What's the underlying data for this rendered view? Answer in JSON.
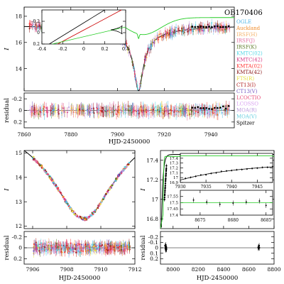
{
  "event_label": "OB170406",
  "chart_data": [
    {
      "id": "top",
      "type": "scatter",
      "ylabel": "I",
      "xlim": [
        7860,
        7950
      ],
      "ylim": [
        18.7,
        12.3
      ],
      "yticks": [
        14,
        16,
        18
      ],
      "xticks": [
        7860,
        7880,
        7900,
        7920,
        7940
      ],
      "peak": {
        "t0": 7909,
        "tE": 5,
        "base": 17.4,
        "amp": 5.1
      },
      "spitzer_curve": {
        "base": 17.9,
        "amp": 1.3,
        "t0": 7911,
        "tE": 10
      },
      "legend": [
        {
          "name": "OGLE",
          "color": "#4fb6e6"
        },
        {
          "name": "Auckland",
          "color": "#f08c2a"
        },
        {
          "name": "IRSF(H)",
          "color": "#f4b26a"
        },
        {
          "name": "IRSF(J)",
          "color": "#e36fa0"
        },
        {
          "name": "IRSF(K)",
          "color": "#5f7d2a"
        },
        {
          "name": "KMTC(02)",
          "color": "#55d6e6"
        },
        {
          "name": "KMTC(42)",
          "color": "#d63a86"
        },
        {
          "name": "KMTA(02)",
          "color": "#ff3b3b"
        },
        {
          "name": "KMTA(42)",
          "color": "#8b1a1a"
        },
        {
          "name": "FTS(R)",
          "color": "#e8e040"
        },
        {
          "name": "CT13(I)",
          "color": "#b02020"
        },
        {
          "name": "CT13(V)",
          "color": "#7a5cc4"
        },
        {
          "name": "LCOCTIO",
          "color": "#e8507a"
        },
        {
          "name": "LCOSSO",
          "color": "#d8a0f0"
        },
        {
          "name": "MOA(R)",
          "color": "#bb99dd"
        },
        {
          "name": "MOA(V)",
          "color": "#6ad0e0"
        },
        {
          "name": "Spitzer",
          "color": "#000000"
        }
      ]
    },
    {
      "id": "top-inset",
      "type": "line",
      "xlim": [
        -0.4,
        0.4
      ],
      "ylim": [
        -0.4,
        0.2
      ],
      "xticks": [
        -0.4,
        -0.2,
        0,
        0.2,
        0.4
      ],
      "yticks": [
        -0.2,
        0,
        0.2
      ]
    },
    {
      "id": "top-residual",
      "type": "scatter",
      "ylabel": "residual",
      "xlabel": "HJD-2450000",
      "xlim": [
        7860,
        7950
      ],
      "ylim": [
        -0.3,
        0.3
      ],
      "yticks": [
        -0.2,
        0,
        0.2
      ]
    },
    {
      "id": "bottom-left",
      "type": "scatter",
      "ylabel": "I",
      "xlim": [
        7905.5,
        7912
      ],
      "ylim": [
        15.1,
        11.9
      ],
      "yticks": [
        12,
        13,
        14,
        15
      ],
      "xticks": [
        7906,
        7908,
        7910,
        7912
      ]
    },
    {
      "id": "bottom-left-residual",
      "type": "scatter",
      "ylabel": "residual",
      "xlabel": "HJD-2450000",
      "xlim": [
        7905.5,
        7912
      ],
      "ylim": [
        -0.3,
        0.3
      ],
      "yticks": [
        -0.2,
        0,
        0.2
      ]
    },
    {
      "id": "bottom-right",
      "type": "scatter",
      "ylabel": "I",
      "xlim": [
        7900,
        8800
      ],
      "ylim": [
        17.5,
        16.7
      ],
      "yticks": [
        16.8,
        17,
        17.2,
        17.4
      ],
      "xticks": [
        8000,
        8200,
        8400,
        8600,
        8800
      ]
    },
    {
      "id": "bottom-right-inset-1",
      "type": "scatter",
      "xlim": [
        7930,
        7948
      ],
      "ylim": [
        17.5,
        16.9
      ],
      "xticks": [
        7930,
        7935,
        7940,
        7945
      ],
      "yticks": [
        16.9,
        17,
        17.1,
        17.2,
        17.3,
        17.4
      ]
    },
    {
      "id": "bottom-right-inset-2",
      "type": "scatter",
      "xlim": [
        8672,
        8686
      ],
      "ylim": [
        17.6,
        17.4
      ],
      "xticks": [
        8675,
        8680,
        8685
      ],
      "yticks": [
        17.4,
        17.45,
        17.5,
        17.55
      ]
    },
    {
      "id": "bottom-right-residual",
      "type": "scatter",
      "ylabel": "residual",
      "xlabel": "HJD-2450000",
      "xlim": [
        7900,
        8800
      ],
      "ylim": [
        -0.3,
        0.3
      ],
      "yticks": [
        -0.2,
        -0.1,
        0,
        0.1,
        0.2
      ]
    }
  ]
}
